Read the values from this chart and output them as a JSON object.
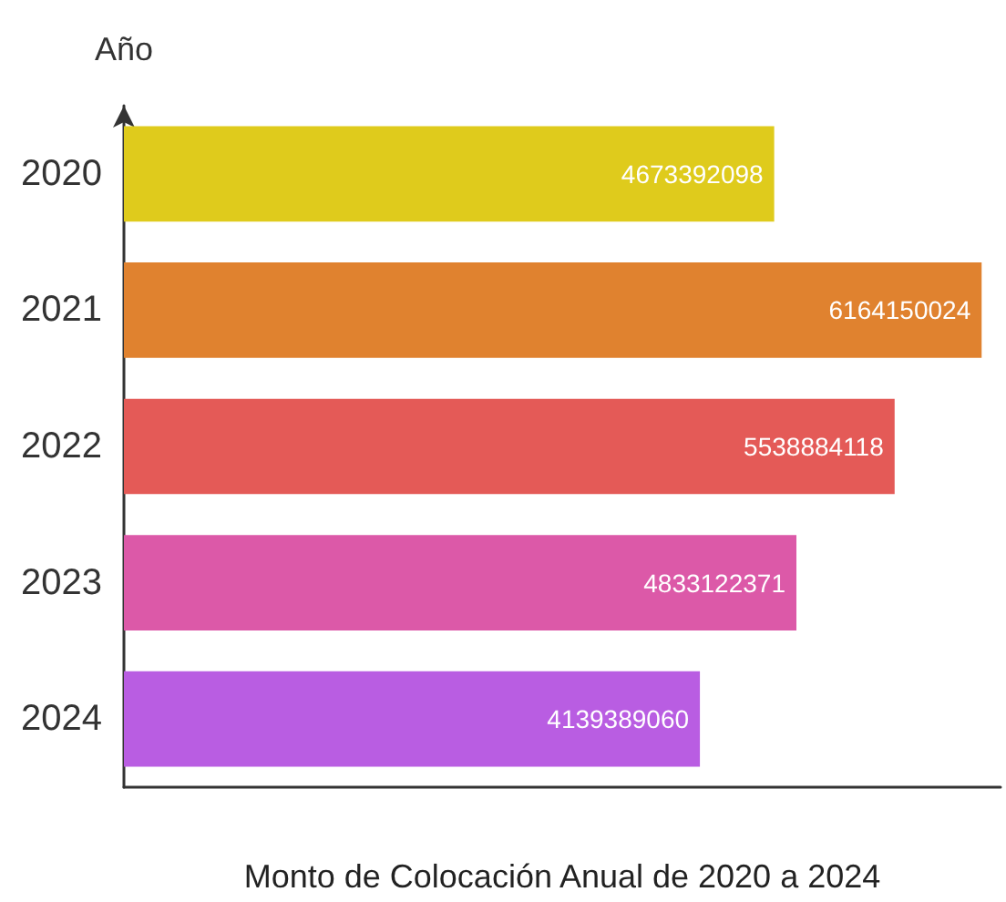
{
  "chart_data": {
    "type": "bar",
    "orientation": "horizontal",
    "xlabel": "Monto de Colocación Anual de 2020 a 2024",
    "ylabel": "Año",
    "categories": [
      "2020",
      "2021",
      "2022",
      "2023",
      "2024"
    ],
    "values": [
      4673392098,
      6164150024,
      5538884118,
      4833122371,
      4139389060
    ],
    "colors": [
      "#dfcb1c",
      "#e0822f",
      "#e45a57",
      "#dc59a8",
      "#b95de2"
    ],
    "xlim": [
      0,
      6300000000
    ],
    "tick_labels": "y",
    "data_labels": true
  }
}
